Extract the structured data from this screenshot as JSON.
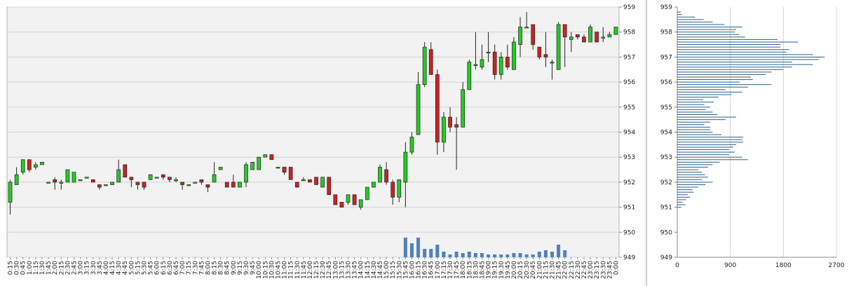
{
  "chart_data": [
    {
      "type": "candlestick",
      "title": "",
      "xlabel": "",
      "ylabel": "",
      "ylim": [
        949,
        959
      ],
      "yticks": [
        "959",
        "958",
        "957",
        "956",
        "955",
        "954",
        "953",
        "952",
        "951",
        "950",
        "949"
      ],
      "x_labels": [
        "0:15",
        "0:30",
        "0:45",
        "1:00",
        "1:15",
        "1:30",
        "1:45",
        "2:00",
        "2:15",
        "2:30",
        "2:45",
        "3:00",
        "3:15",
        "3:30",
        "3:45",
        "4:00",
        "4:15",
        "4:30",
        "4:45",
        "5:00",
        "5:15",
        "5:30",
        "5:45",
        "6:00",
        "6:15",
        "6:30",
        "6:45",
        "7:00",
        "7:15",
        "7:30",
        "7:45",
        "8:00",
        "8:15",
        "8:30",
        "8:45",
        "9:00",
        "9:15",
        "9:30",
        "9:45",
        "10:00",
        "10:15",
        "10:30",
        "10:45",
        "11:00",
        "11:15",
        "11:30",
        "11:45",
        "12:00",
        "12:15",
        "12:30",
        "12:45",
        "13:00",
        "13:15",
        "13:30",
        "13:45",
        "14:00",
        "14:15",
        "14:30",
        "14:45",
        "15:00",
        "15:15",
        "15:30",
        "15:45",
        "16:00",
        "16:15",
        "16:30",
        "16:45",
        "17:00",
        "17:15",
        "17:30",
        "17:45",
        "18:00",
        "18:15",
        "18:30",
        "18:45",
        "19:00",
        "19:15",
        "19:30",
        "19:45",
        "20:00",
        "20:15",
        "20:30",
        "20:45",
        "21:00",
        "21:15",
        "21:30",
        "21:45",
        "22:00",
        "22:15",
        "22:30",
        "22:45",
        "23:00",
        "23:15",
        "23:30",
        "23:45",
        "0:00"
      ],
      "up_color": "#22cc22",
      "down_color": "#cc2222",
      "grid": true,
      "candles": [
        {
          "o": 951.2,
          "h": 952.1,
          "l": 950.7,
          "c": 952.0
        },
        {
          "o": 951.9,
          "h": 952.6,
          "l": 951.9,
          "c": 952.3
        },
        {
          "o": 952.4,
          "h": 952.9,
          "l": 952.3,
          "c": 952.9
        },
        {
          "o": 952.9,
          "h": 952.9,
          "l": 952.4,
          "c": 952.5
        },
        {
          "o": 952.6,
          "h": 952.8,
          "l": 952.5,
          "c": 952.7
        },
        {
          "o": 952.7,
          "h": 952.8,
          "l": 952.7,
          "c": 952.8
        },
        {
          "o": 952.0,
          "h": 952.0,
          "l": 952.0,
          "c": 952.0
        },
        {
          "o": 952.1,
          "h": 952.2,
          "l": 951.7,
          "c": 952.0
        },
        {
          "o": 952.0,
          "h": 952.1,
          "l": 951.7,
          "c": 952.0
        },
        {
          "o": 952.0,
          "h": 952.5,
          "l": 952.0,
          "c": 952.5
        },
        {
          "o": 952.0,
          "h": 952.4,
          "l": 952.0,
          "c": 952.4
        },
        {
          "o": 952.1,
          "h": 952.1,
          "l": 952.1,
          "c": 952.1
        },
        {
          "o": 952.2,
          "h": 952.2,
          "l": 952.2,
          "c": 952.2
        },
        {
          "o": 952.1,
          "h": 952.1,
          "l": 952.0,
          "c": 952.0
        },
        {
          "o": 951.9,
          "h": 951.9,
          "l": 951.7,
          "c": 951.8
        },
        {
          "o": 951.9,
          "h": 951.9,
          "l": 951.9,
          "c": 951.9
        },
        {
          "o": 951.9,
          "h": 952.0,
          "l": 951.9,
          "c": 952.0
        },
        {
          "o": 952.0,
          "h": 952.9,
          "l": 952.0,
          "c": 952.5
        },
        {
          "o": 952.7,
          "h": 952.7,
          "l": 952.2,
          "c": 952.2
        },
        {
          "o": 952.2,
          "h": 952.2,
          "l": 951.8,
          "c": 952.1
        },
        {
          "o": 952.0,
          "h": 952.0,
          "l": 951.7,
          "c": 951.9
        },
        {
          "o": 952.0,
          "h": 952.0,
          "l": 951.7,
          "c": 951.8
        },
        {
          "o": 952.1,
          "h": 952.3,
          "l": 952.1,
          "c": 952.3
        },
        {
          "o": 952.2,
          "h": 952.2,
          "l": 952.2,
          "c": 952.2
        },
        {
          "o": 952.3,
          "h": 952.3,
          "l": 952.1,
          "c": 952.2
        },
        {
          "o": 952.2,
          "h": 952.2,
          "l": 952.0,
          "c": 952.1
        },
        {
          "o": 952.1,
          "h": 952.2,
          "l": 952.0,
          "c": 952.1
        },
        {
          "o": 952.0,
          "h": 952.0,
          "l": 951.7,
          "c": 951.9
        },
        {
          "o": 951.9,
          "h": 951.9,
          "l": 951.9,
          "c": 951.9
        },
        {
          "o": 952.0,
          "h": 952.0,
          "l": 952.0,
          "c": 952.0
        },
        {
          "o": 952.1,
          "h": 952.1,
          "l": 951.9,
          "c": 952.0
        },
        {
          "o": 951.9,
          "h": 951.9,
          "l": 951.6,
          "c": 951.8
        },
        {
          "o": 952.0,
          "h": 952.8,
          "l": 952.0,
          "c": 952.3
        },
        {
          "o": 952.5,
          "h": 952.6,
          "l": 952.5,
          "c": 952.6
        },
        {
          "o": 952.0,
          "h": 952.0,
          "l": 951.8,
          "c": 951.8
        },
        {
          "o": 952.0,
          "h": 952.3,
          "l": 951.8,
          "c": 951.8
        },
        {
          "o": 951.8,
          "h": 952.0,
          "l": 951.8,
          "c": 952.0
        },
        {
          "o": 952.0,
          "h": 952.8,
          "l": 951.8,
          "c": 952.7
        },
        {
          "o": 952.5,
          "h": 952.8,
          "l": 952.5,
          "c": 952.8
        },
        {
          "o": 952.5,
          "h": 953.0,
          "l": 952.5,
          "c": 953.0
        },
        {
          "o": 953.0,
          "h": 953.1,
          "l": 953.0,
          "c": 953.1
        },
        {
          "o": 953.1,
          "h": 953.1,
          "l": 952.9,
          "c": 952.9
        },
        {
          "o": 952.6,
          "h": 952.6,
          "l": 952.6,
          "c": 952.6
        },
        {
          "o": 952.6,
          "h": 952.6,
          "l": 952.3,
          "c": 952.4
        },
        {
          "o": 952.6,
          "h": 952.6,
          "l": 952.1,
          "c": 952.1
        },
        {
          "o": 952.0,
          "h": 952.0,
          "l": 951.8,
          "c": 951.8
        },
        {
          "o": 952.1,
          "h": 952.2,
          "l": 952.1,
          "c": 952.1
        },
        {
          "o": 952.1,
          "h": 952.1,
          "l": 952.0,
          "c": 952.0
        },
        {
          "o": 952.2,
          "h": 952.2,
          "l": 951.9,
          "c": 951.9
        },
        {
          "o": 951.8,
          "h": 952.2,
          "l": 951.8,
          "c": 952.2
        },
        {
          "o": 952.2,
          "h": 952.2,
          "l": 951.5,
          "c": 951.5
        },
        {
          "o": 951.5,
          "h": 951.5,
          "l": 951.1,
          "c": 951.1
        },
        {
          "o": 951.2,
          "h": 951.2,
          "l": 951.0,
          "c": 951.0
        },
        {
          "o": 951.2,
          "h": 951.5,
          "l": 951.1,
          "c": 951.5
        },
        {
          "o": 951.5,
          "h": 951.5,
          "l": 951.1,
          "c": 951.1
        },
        {
          "o": 951.0,
          "h": 951.3,
          "l": 950.9,
          "c": 951.3
        },
        {
          "o": 951.3,
          "h": 951.8,
          "l": 951.3,
          "c": 951.8
        },
        {
          "o": 951.8,
          "h": 952.0,
          "l": 951.8,
          "c": 952.0
        },
        {
          "o": 952.0,
          "h": 952.7,
          "l": 952.0,
          "c": 952.6
        },
        {
          "o": 952.5,
          "h": 952.8,
          "l": 951.9,
          "c": 952.0
        },
        {
          "o": 952.0,
          "h": 952.1,
          "l": 951.1,
          "c": 951.4
        },
        {
          "o": 951.4,
          "h": 952.1,
          "l": 951.2,
          "c": 952.1
        },
        {
          "o": 952.0,
          "h": 953.6,
          "l": 951.0,
          "c": 953.2
        },
        {
          "o": 953.2,
          "h": 954.0,
          "l": 953.1,
          "c": 953.8
        },
        {
          "o": 953.9,
          "h": 956.4,
          "l": 953.9,
          "c": 955.9
        },
        {
          "o": 955.9,
          "h": 957.6,
          "l": 955.8,
          "c": 957.4
        },
        {
          "o": 957.3,
          "h": 957.6,
          "l": 956.3,
          "c": 956.3
        },
        {
          "o": 956.3,
          "h": 956.5,
          "l": 953.1,
          "c": 953.6
        },
        {
          "o": 953.6,
          "h": 954.8,
          "l": 953.2,
          "c": 954.6
        },
        {
          "o": 954.6,
          "h": 955.0,
          "l": 954.0,
          "c": 954.2
        },
        {
          "o": 954.3,
          "h": 954.6,
          "l": 952.5,
          "c": 954.2
        },
        {
          "o": 954.2,
          "h": 956.0,
          "l": 954.2,
          "c": 955.7
        },
        {
          "o": 955.7,
          "h": 956.9,
          "l": 955.7,
          "c": 956.8
        },
        {
          "o": 956.7,
          "h": 958.0,
          "l": 956.5,
          "c": 956.7
        },
        {
          "o": 956.6,
          "h": 957.5,
          "l": 956.5,
          "c": 956.9
        },
        {
          "o": 957.2,
          "h": 958.0,
          "l": 956.8,
          "c": 957.2
        },
        {
          "o": 957.2,
          "h": 957.5,
          "l": 956.1,
          "c": 956.3
        },
        {
          "o": 956.3,
          "h": 957.2,
          "l": 956.1,
          "c": 957.0
        },
        {
          "o": 957.0,
          "h": 957.5,
          "l": 956.5,
          "c": 956.6
        },
        {
          "o": 956.5,
          "h": 957.8,
          "l": 956.5,
          "c": 957.6
        },
        {
          "o": 957.5,
          "h": 958.6,
          "l": 957.0,
          "c": 958.2
        },
        {
          "o": 958.2,
          "h": 958.8,
          "l": 958.2,
          "c": 958.2
        },
        {
          "o": 958.3,
          "h": 958.3,
          "l": 957.3,
          "c": 957.5
        },
        {
          "o": 957.4,
          "h": 957.4,
          "l": 956.9,
          "c": 957.0
        },
        {
          "o": 957.1,
          "h": 958.0,
          "l": 956.6,
          "c": 957.0
        },
        {
          "o": 956.8,
          "h": 956.9,
          "l": 956.1,
          "c": 956.8
        },
        {
          "o": 956.5,
          "h": 958.4,
          "l": 956.5,
          "c": 958.3
        },
        {
          "o": 958.3,
          "h": 958.3,
          "l": 956.6,
          "c": 957.8
        },
        {
          "o": 957.7,
          "h": 958.0,
          "l": 957.2,
          "c": 957.8
        },
        {
          "o": 957.9,
          "h": 957.9,
          "l": 957.7,
          "c": 957.8
        },
        {
          "o": 957.8,
          "h": 957.9,
          "l": 957.6,
          "c": 957.6
        },
        {
          "o": 957.6,
          "h": 958.3,
          "l": 957.6,
          "c": 958.2
        },
        {
          "o": 958.0,
          "h": 958.0,
          "l": 957.6,
          "c": 957.6
        },
        {
          "o": 957.8,
          "h": 958.2,
          "l": 957.6,
          "c": 957.8
        },
        {
          "o": 957.8,
          "h": 958.0,
          "l": 957.8,
          "c": 957.9
        },
        {
          "o": 957.9,
          "h": 958.2,
          "l": 957.9,
          "c": 958.2
        }
      ],
      "volume": {
        "color": "#4f81bd",
        "values": [
          0,
          0,
          0,
          0,
          0,
          0,
          0,
          0,
          0,
          0,
          0,
          0,
          0,
          0,
          0,
          0,
          0,
          0,
          0,
          0,
          0,
          0,
          0,
          0,
          0,
          0,
          0,
          0,
          0,
          0,
          0,
          0,
          0,
          0,
          0,
          0,
          0,
          0,
          0,
          0,
          0,
          0,
          0,
          0,
          0,
          0,
          0,
          0,
          0,
          0,
          0,
          0,
          0,
          0,
          0,
          0,
          0,
          0,
          0,
          0,
          0,
          0,
          0.7,
          0.5,
          0.7,
          0.3,
          0.3,
          0.45,
          0.2,
          0.1,
          0.2,
          0.15,
          0.2,
          0.15,
          0.15,
          0.1,
          0.1,
          0.1,
          0.1,
          0.15,
          0.15,
          0.1,
          0.1,
          0.2,
          0.25,
          0.2,
          0.45,
          0.25,
          0,
          0,
          0,
          0,
          0,
          0,
          0,
          0
        ]
      }
    },
    {
      "type": "bar",
      "orientation": "horizontal",
      "title": "",
      "xlim": [
        0,
        2700
      ],
      "xticks": [
        "0",
        "900",
        "1800",
        "2700"
      ],
      "ylim": [
        949,
        959
      ],
      "yticks": [
        "959",
        "958",
        "957",
        "956",
        "955",
        "954",
        "953",
        "952",
        "951",
        "950",
        "949"
      ],
      "bar_color": "#2e5f8a",
      "price_step": 0.1,
      "profile": [
        {
          "price": 951.0,
          "value": 70
        },
        {
          "price": 951.1,
          "value": 140
        },
        {
          "price": 951.2,
          "value": 90
        },
        {
          "price": 951.3,
          "value": 150
        },
        {
          "price": 951.4,
          "value": 220
        },
        {
          "price": 951.5,
          "value": 180
        },
        {
          "price": 951.6,
          "value": 280
        },
        {
          "price": 951.7,
          "value": 260
        },
        {
          "price": 951.8,
          "value": 360
        },
        {
          "price": 951.9,
          "value": 480
        },
        {
          "price": 952.0,
          "value": 600
        },
        {
          "price": 952.1,
          "value": 420
        },
        {
          "price": 952.2,
          "value": 520
        },
        {
          "price": 952.3,
          "value": 470
        },
        {
          "price": 952.4,
          "value": 420
        },
        {
          "price": 952.5,
          "value": 360
        },
        {
          "price": 952.6,
          "value": 520
        },
        {
          "price": 952.7,
          "value": 600
        },
        {
          "price": 952.8,
          "value": 720
        },
        {
          "price": 952.9,
          "value": 1200
        },
        {
          "price": 953.0,
          "value": 1100
        },
        {
          "price": 953.1,
          "value": 880
        },
        {
          "price": 953.2,
          "value": 980
        },
        {
          "price": 953.3,
          "value": 880
        },
        {
          "price": 953.4,
          "value": 950
        },
        {
          "price": 953.5,
          "value": 1000
        },
        {
          "price": 953.6,
          "value": 1120
        },
        {
          "price": 953.7,
          "value": 1100
        },
        {
          "price": 953.8,
          "value": 1120
        },
        {
          "price": 953.9,
          "value": 750
        },
        {
          "price": 954.0,
          "value": 600
        },
        {
          "price": 954.1,
          "value": 560
        },
        {
          "price": 954.2,
          "value": 560
        },
        {
          "price": 954.3,
          "value": 460
        },
        {
          "price": 954.4,
          "value": 560
        },
        {
          "price": 954.5,
          "value": 820
        },
        {
          "price": 954.6,
          "value": 1000
        },
        {
          "price": 954.7,
          "value": 680
        },
        {
          "price": 954.8,
          "value": 600
        },
        {
          "price": 954.9,
          "value": 480
        },
        {
          "price": 955.0,
          "value": 560
        },
        {
          "price": 955.1,
          "value": 460
        },
        {
          "price": 955.2,
          "value": 620
        },
        {
          "price": 955.3,
          "value": 440
        },
        {
          "price": 955.4,
          "value": 700
        },
        {
          "price": 955.5,
          "value": 920
        },
        {
          "price": 955.6,
          "value": 1100
        },
        {
          "price": 955.7,
          "value": 820
        },
        {
          "price": 955.8,
          "value": 1200
        },
        {
          "price": 955.9,
          "value": 1600
        },
        {
          "price": 956.0,
          "value": 1060
        },
        {
          "price": 956.1,
          "value": 1280
        },
        {
          "price": 956.2,
          "value": 1250
        },
        {
          "price": 956.3,
          "value": 1500
        },
        {
          "price": 956.4,
          "value": 1600
        },
        {
          "price": 956.5,
          "value": 1800
        },
        {
          "price": 956.6,
          "value": 1950
        },
        {
          "price": 956.7,
          "value": 2300
        },
        {
          "price": 956.8,
          "value": 1950
        },
        {
          "price": 956.9,
          "value": 2400
        },
        {
          "price": 957.0,
          "value": 2500
        },
        {
          "price": 957.1,
          "value": 2300
        },
        {
          "price": 957.2,
          "value": 1850
        },
        {
          "price": 957.3,
          "value": 1900
        },
        {
          "price": 957.4,
          "value": 1750
        },
        {
          "price": 957.5,
          "value": 1750
        },
        {
          "price": 957.6,
          "value": 2050
        },
        {
          "price": 957.7,
          "value": 1700
        },
        {
          "price": 957.8,
          "value": 1150
        },
        {
          "price": 957.9,
          "value": 1050
        },
        {
          "price": 958.0,
          "value": 980
        },
        {
          "price": 958.1,
          "value": 1000
        },
        {
          "price": 958.2,
          "value": 1100
        },
        {
          "price": 958.3,
          "value": 800
        },
        {
          "price": 958.4,
          "value": 600
        },
        {
          "price": 958.5,
          "value": 450
        },
        {
          "price": 958.6,
          "value": 300
        },
        {
          "price": 958.7,
          "value": 80
        },
        {
          "price": 958.8,
          "value": 60
        }
      ]
    }
  ]
}
